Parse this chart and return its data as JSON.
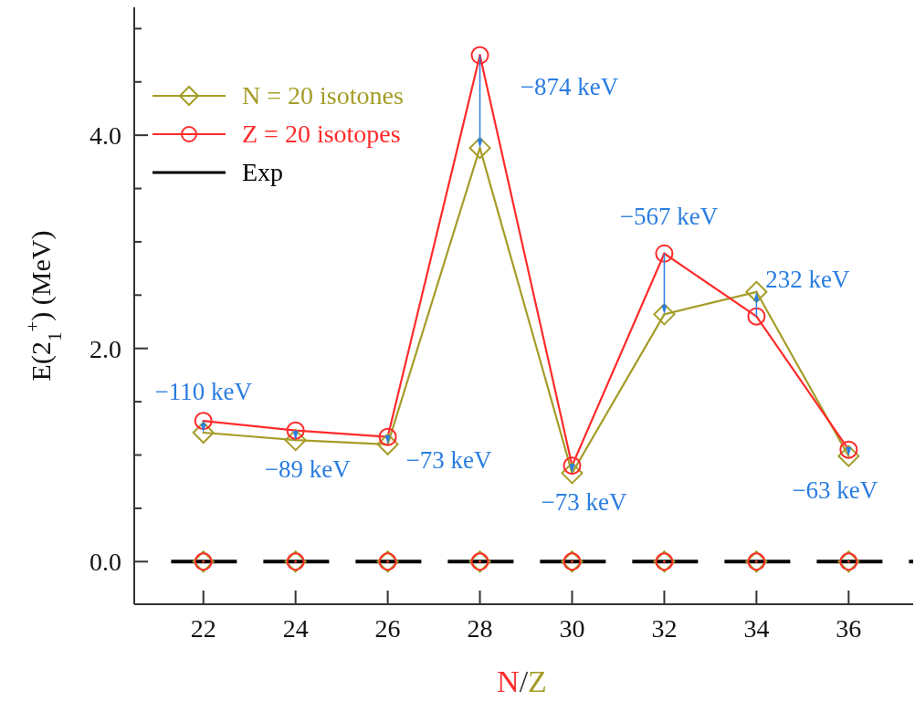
{
  "chart_data": {
    "type": "line",
    "xlabel": "N/Z",
    "ylabel": "E(2$_{1}$$^{+}$)  (MeV)",
    "x": [
      22,
      24,
      26,
      28,
      30,
      32,
      34,
      36
    ],
    "series": [
      {
        "name": "N = 20 isotones",
        "color": "#a59d28",
        "marker": "diamond",
        "values": [
          1.21,
          1.14,
          1.1,
          3.88,
          0.83,
          2.32,
          2.53,
          0.99
        ]
      },
      {
        "name": "Z = 20 isotopes",
        "color": "#ff2b2b",
        "marker": "circle",
        "values": [
          1.32,
          1.23,
          1.17,
          4.75,
          0.9,
          2.89,
          2.3,
          1.05
        ]
      },
      {
        "name": "Exp",
        "color": "#000000",
        "x": [
          21.3,
          37.4
        ],
        "values": [
          0,
          0
        ],
        "line_style": "dashed",
        "marker": "none"
      },
      {
        "type": "scatter",
        "color": "#a59d28",
        "marker": "diamond",
        "values": [
          0,
          0,
          0,
          0,
          0,
          0,
          0,
          0
        ]
      },
      {
        "type": "scatter",
        "color": "#ff2b2b",
        "marker": "circle",
        "values": [
          0,
          0,
          0,
          0,
          0,
          0,
          0,
          0
        ]
      }
    ],
    "annotations": [
      {
        "text": "−110 keV",
        "x": 22,
        "y": 1.32
      },
      {
        "text": "−89 keV",
        "x": 24,
        "y": 1.23
      },
      {
        "text": "−73 keV",
        "x": 26,
        "y": 1.17
      },
      {
        "text": "−874 keV",
        "x": 28,
        "y": 4.75
      },
      {
        "text": "−73 keV",
        "x": 30,
        "y": 0.9
      },
      {
        "text": "−567 keV",
        "x": 32,
        "y": 2.89
      },
      {
        "text": "232 keV",
        "x": 34,
        "y": 2.3
      },
      {
        "text": "−63 keV",
        "x": 36,
        "y": 1.05
      }
    ],
    "xlim": [
      20.5,
      37.4
    ],
    "xticks": [
      22,
      24,
      26,
      28,
      30,
      32,
      34,
      36
    ],
    "ylim": [
      -0.4,
      5.2
    ],
    "yticks": [
      {
        "value": 0,
        "label": "0.0"
      },
      {
        "value": 0.5,
        "label": null
      },
      {
        "value": 1,
        "label": null
      },
      {
        "value": 1.5,
        "label": null
      },
      {
        "value": 2,
        "label": "2.0"
      },
      {
        "value": 2.5,
        "label": null
      },
      {
        "value": 3,
        "label": null
      },
      {
        "value": 3.5,
        "label": null
      },
      {
        "value": 4,
        "label": "4.0"
      },
      {
        "value": 4.5,
        "label": null
      },
      {
        "value": 5,
        "label": null
      }
    ],
    "legend": "top left",
    "grid": false
  }
}
